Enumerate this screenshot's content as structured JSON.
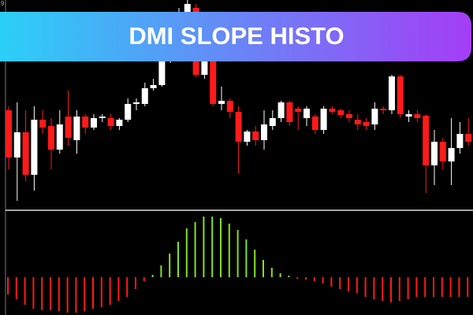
{
  "corner_label": "9",
  "chart_data": [
    {
      "type": "candlestick",
      "title": "DMI SLOPE HISTO",
      "ylim": [
        0,
        265
      ],
      "up_color": "#ffffff",
      "down_color": "#ff1a1a",
      "open": [
        125,
        65,
        97,
        43,
        113,
        105,
        75,
        117,
        87,
        117,
        103,
        115,
        115,
        105,
        113,
        133,
        133,
        153,
        157,
        187,
        215,
        245,
        255,
        170,
        205,
        133,
        137,
        123,
        85,
        98,
        87,
        105,
        115,
        135,
        127,
        115,
        117,
        100,
        127,
        125,
        120,
        113,
        110,
        107,
        127,
        125,
        168,
        117,
        120,
        118,
        55,
        85,
        60,
        77,
        95
      ],
      "high": [
        130,
        135,
        125,
        130,
        125,
        115,
        125,
        150,
        125,
        120,
        120,
        120,
        120,
        115,
        140,
        140,
        160,
        165,
        190,
        225,
        255,
        265,
        260,
        205,
        210,
        155,
        140,
        130,
        100,
        105,
        125,
        125,
        137,
        137,
        130,
        130,
        120,
        130,
        130,
        127,
        125,
        120,
        115,
        135,
        130,
        170,
        170,
        125,
        125,
        120,
        100,
        90,
        115,
        110,
        115
      ],
      "low": [
        50,
        10,
        35,
        23,
        95,
        50,
        70,
        80,
        70,
        95,
        100,
        110,
        100,
        100,
        110,
        125,
        130,
        150,
        155,
        185,
        210,
        240,
        167,
        165,
        130,
        125,
        115,
        45,
        80,
        80,
        75,
        100,
        110,
        105,
        100,
        105,
        95,
        95,
        120,
        115,
        110,
        100,
        100,
        100,
        120,
        120,
        115,
        110,
        110,
        20,
        30,
        50,
        30,
        70,
        80
      ],
      "close": [
        65,
        97,
        43,
        113,
        103,
        75,
        107,
        90,
        117,
        103,
        115,
        117,
        105,
        113,
        133,
        135,
        153,
        157,
        187,
        215,
        245,
        260,
        170,
        195,
        133,
        137,
        123,
        85,
        98,
        87,
        107,
        115,
        135,
        110,
        123,
        127,
        100,
        127,
        123,
        119,
        115,
        107,
        105,
        127,
        125,
        168,
        120,
        120,
        115,
        55,
        85,
        60,
        77,
        95,
        85
      ]
    },
    {
      "type": "bar",
      "ylim": [
        -48,
        84
      ],
      "positive_color": "#86e01e",
      "negative_color": "#ff1a1a",
      "values": [
        -22,
        -28,
        -35,
        -40,
        -42,
        -42,
        -43,
        -45,
        -45,
        -43,
        -40,
        -38,
        -35,
        -30,
        -25,
        -15,
        -5,
        3,
        15,
        30,
        45,
        62,
        70,
        77,
        77,
        75,
        68,
        60,
        48,
        35,
        22,
        12,
        5,
        2,
        -2,
        -3,
        -5,
        -8,
        -12,
        -15,
        -18,
        -20,
        -25,
        -28,
        -30,
        -32,
        -30,
        -28,
        -25,
        -25,
        -25,
        -25,
        -25,
        -25,
        -25,
        -22
      ]
    }
  ]
}
